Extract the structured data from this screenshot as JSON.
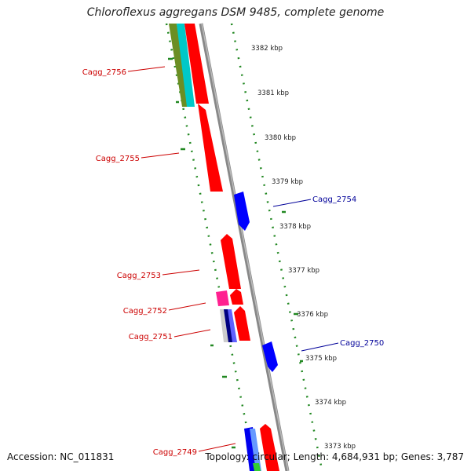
{
  "title": "Chloroflexus aggregans DSM 9485, complete genome",
  "footer": {
    "accession": "Accession: NC_011831",
    "stats": "Topology: circular; Length: 4,684,931 bp; Genes: 3,787"
  },
  "ticks": [
    "3382 kbp",
    "3381 kbp",
    "3380 kbp",
    "3379 kbp",
    "3378 kbp",
    "3377 kbp",
    "3376 kbp",
    "3375 kbp",
    "3374 kbp",
    "3373 kbp"
  ],
  "genes_left": [
    "Cagg_2756",
    "Cagg_2755",
    "Cagg_2753",
    "Cagg_2752",
    "Cagg_2751",
    "Cagg_2749"
  ],
  "genes_right": [
    "Cagg_2754",
    "Cagg_2750"
  ],
  "colors": {
    "forward_cds": "#ff0000",
    "reverse_cds": "#0000ff",
    "left_label": "#cc0000",
    "right_label": "#000099",
    "backbone": "#888888",
    "gc_skew": "#228822",
    "olive": "#6b8e23",
    "cyan": "#00bfbf",
    "magenta": "#ff1493",
    "navy": "#000080",
    "green": "#32cd32"
  }
}
